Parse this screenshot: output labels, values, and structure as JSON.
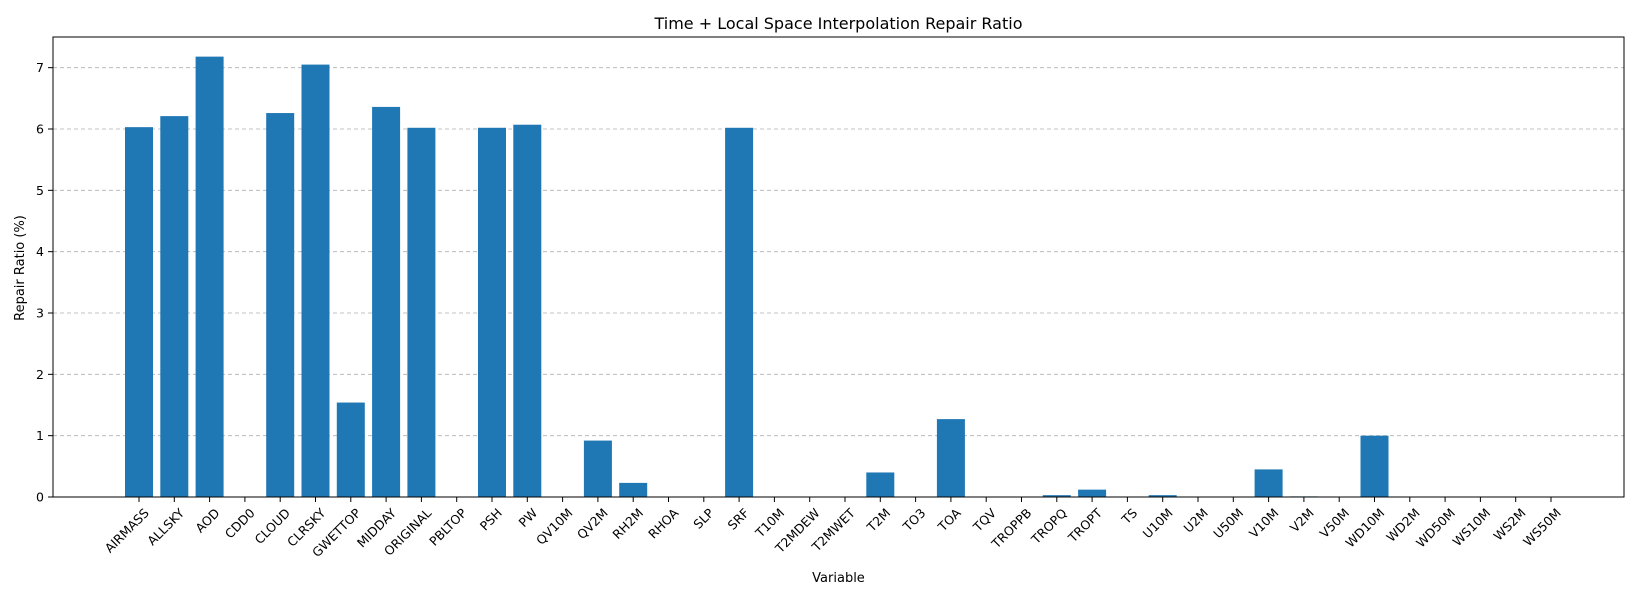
{
  "chart_data": {
    "type": "bar",
    "title": "Time + Local Space Interpolation Repair Ratio",
    "xlabel": "Variable",
    "ylabel": "Repair Ratio (%)",
    "ylim": [
      0,
      7.5
    ],
    "yticks": [
      0,
      1,
      2,
      3,
      4,
      5,
      6,
      7
    ],
    "grid": "y-dashed",
    "bar_color": "#1f77b4",
    "grid_color": "#b0b0b0",
    "categories": [
      "AIRMASS",
      "ALLSKY",
      "AOD",
      "CDD0",
      "CLOUD",
      "CLRSKY",
      "GWETTOP",
      "MIDDAY",
      "ORIGINAL",
      "PBLTOP",
      "PSH",
      "PW",
      "QV10M",
      "QV2M",
      "RH2M",
      "RHOA",
      "SLP",
      "SRF",
      "T10M",
      "T2MDEW",
      "T2MWET",
      "T2M",
      "TO3",
      "TOA",
      "TQV",
      "TROPPB",
      "TROPQ",
      "TROPT",
      "TS",
      "U10M",
      "U2M",
      "U50M",
      "V10M",
      "V2M",
      "V50M",
      "WD10M",
      "WD2M",
      "WD50M",
      "WS10M",
      "WS2M",
      "WS50M"
    ],
    "values": [
      6.03,
      6.21,
      7.18,
      0,
      6.26,
      7.05,
      1.54,
      6.36,
      6.02,
      0,
      6.02,
      6.07,
      0,
      0.92,
      0.23,
      0,
      0,
      6.02,
      0,
      0,
      0,
      0.4,
      0,
      1.27,
      0,
      0,
      0.03,
      0.12,
      0,
      0.03,
      0,
      0,
      0.45,
      0.01,
      0,
      1.0,
      0,
      0,
      0,
      0,
      0
    ]
  }
}
